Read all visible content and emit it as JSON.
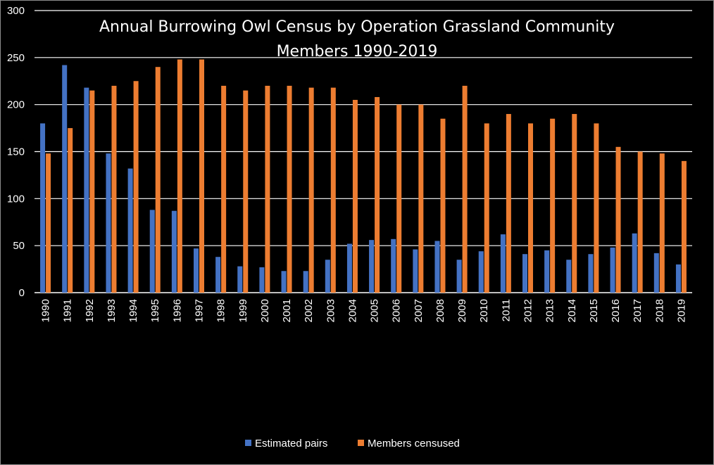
{
  "chart_data": {
    "type": "bar",
    "title_lines": [
      "Annual Burrowing Owl Census by Operation Grassland Community",
      "Members 1990-2019"
    ],
    "xlabel": "",
    "ylabel": "",
    "ylim": [
      0,
      300
    ],
    "yticks": [
      0,
      50,
      100,
      150,
      200,
      250,
      300
    ],
    "grid": true,
    "legend_position": "bottom",
    "categories": [
      "1990",
      "1991",
      "1992",
      "1993",
      "1994",
      "1995",
      "1996",
      "1997",
      "1998",
      "1999",
      "2000",
      "2001",
      "2002",
      "2003",
      "2004",
      "2005",
      "2006",
      "2007",
      "2008",
      "2009",
      "2010",
      "2011",
      "2012",
      "2013",
      "2014",
      "2015",
      "2016",
      "2017",
      "2018",
      "2019"
    ],
    "series": [
      {
        "name": "Estimated pairs",
        "color": "#4472c4",
        "values": [
          180,
          242,
          218,
          148,
          132,
          88,
          87,
          47,
          38,
          28,
          27,
          23,
          23,
          35,
          52,
          56,
          57,
          46,
          55,
          35,
          44,
          62,
          41,
          45,
          35,
          41,
          48,
          63,
          42,
          30
        ]
      },
      {
        "name": "Members  censused",
        "color": "#ed7d31",
        "values": [
          148,
          175,
          215,
          220,
          225,
          240,
          248,
          248,
          220,
          215,
          220,
          220,
          218,
          218,
          205,
          208,
          200,
          200,
          185,
          220,
          180,
          190,
          180,
          185,
          190,
          180,
          155,
          150,
          148,
          140
        ]
      }
    ],
    "colors": {
      "background": "#000000",
      "gridline": "#ffffff",
      "text": "#ffffff"
    }
  }
}
